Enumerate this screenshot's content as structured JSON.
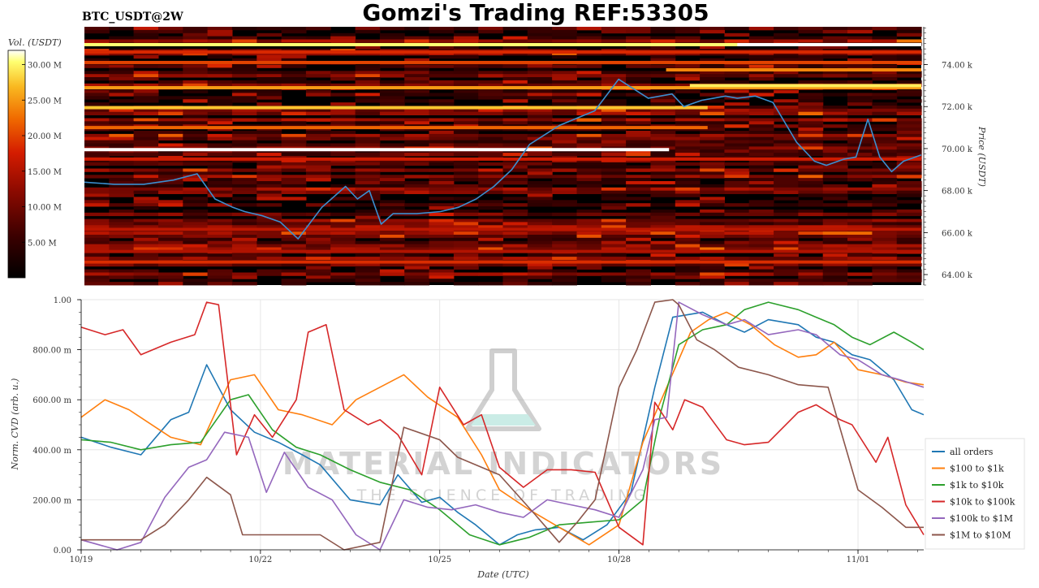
{
  "header": {
    "title": "Gomzi's Trading REF:53305",
    "symbol": "BTC_USDT@2W"
  },
  "watermark": {
    "brand": "MATERIAL INDICATORS",
    "tagline": "THE SCIENCE OF TRADING",
    "icon": "flask-icon"
  },
  "colors": {
    "price_line": "#3b8fd0",
    "heatmap_bg": "#000000"
  },
  "chart_data": [
    {
      "type": "heatmap",
      "title": "",
      "colorbar": {
        "label": "Vol. (USDT)",
        "ticks": [
          "5.00 M",
          "10.00 M",
          "15.00 M",
          "20.00 M",
          "25.00 M",
          "30.00 M"
        ],
        "tick_values": [
          5,
          10,
          15,
          20,
          25,
          30
        ],
        "range": [
          0,
          32
        ],
        "colors": [
          "#000000",
          "#3a0000",
          "#8c0a00",
          "#d41c00",
          "#f06a00",
          "#f9b820",
          "#ffff70",
          "#ffffff"
        ]
      },
      "ylabel": "Price (USDT)",
      "yticks": [
        "64.00 k",
        "66.00 k",
        "68.00 k",
        "70.00 k",
        "72.00 k",
        "74.00 k"
      ],
      "ytick_values": [
        64000,
        66000,
        68000,
        70000,
        72000,
        74000
      ],
      "ylim": [
        63500,
        75800
      ],
      "xlim": [
        0,
        14.1
      ],
      "price_series": {
        "x": [
          0,
          0.5,
          1.0,
          1.5,
          1.9,
          2.2,
          2.5,
          2.7,
          3.0,
          3.3,
          3.6,
          4.0,
          4.4,
          4.6,
          4.8,
          5.0,
          5.2,
          5.6,
          6.0,
          6.3,
          6.6,
          6.9,
          7.2,
          7.5,
          8.0,
          8.6,
          9.0,
          9.5,
          9.9,
          10.1,
          10.4,
          10.6,
          10.8,
          11.0,
          11.3,
          11.6,
          12.0,
          12.3,
          12.5,
          12.8,
          13.0,
          13.2,
          13.4,
          13.6,
          13.8,
          14.1
        ],
        "y": [
          68400,
          68300,
          68300,
          68500,
          68800,
          67600,
          67200,
          67000,
          66800,
          66500,
          65700,
          67200,
          68200,
          67600,
          68000,
          66400,
          66900,
          66900,
          67000,
          67200,
          67600,
          68200,
          69000,
          70200,
          71100,
          71800,
          73300,
          72400,
          72600,
          72000,
          72300,
          72400,
          72500,
          72400,
          72500,
          72200,
          70300,
          69400,
          69200,
          69500,
          69600,
          71400,
          69600,
          68900,
          69400,
          69700
        ]
      }
    },
    {
      "type": "line",
      "title": "",
      "xlabel": "Date (UTC)",
      "ylabel": "Norm. CVD (arb. u.)",
      "categories": [
        "10/19",
        "10/22",
        "10/25",
        "10/28",
        "11/01"
      ],
      "tick_x": [
        0,
        3,
        6,
        9,
        13
      ],
      "yticks": [
        "0.00",
        "200.00 m",
        "400.00 m",
        "600.00 m",
        "800.00 m",
        "1.00"
      ],
      "ytick_values": [
        0,
        200,
        400,
        600,
        800,
        1000
      ],
      "xlim": [
        0,
        14.1
      ],
      "ylim": [
        0,
        1000
      ],
      "legend": "bottom-right",
      "grid": true,
      "series": [
        {
          "name": "all orders",
          "color": "#1f77b4",
          "x": [
            0,
            0.5,
            1.0,
            1.5,
            1.8,
            2.1,
            2.5,
            2.9,
            3.3,
            3.7,
            4.0,
            4.5,
            5.0,
            5.3,
            5.7,
            6.0,
            6.3,
            6.6,
            7.0,
            7.3,
            7.6,
            8.0,
            8.4,
            8.8,
            9.2,
            9.6,
            9.9,
            10.4,
            10.8,
            11.1,
            11.5,
            12.0,
            12.3,
            12.6,
            12.9,
            13.2,
            13.6,
            13.9,
            14.1
          ],
          "y": [
            450,
            410,
            380,
            520,
            550,
            740,
            560,
            470,
            430,
            380,
            340,
            200,
            180,
            300,
            190,
            210,
            150,
            100,
            20,
            60,
            80,
            90,
            40,
            100,
            230,
            650,
            930,
            950,
            900,
            870,
            920,
            900,
            850,
            830,
            780,
            760,
            680,
            560,
            540
          ]
        },
        {
          "name": "$100 to $1k",
          "color": "#ff7f0e",
          "x": [
            0,
            0.4,
            0.8,
            1.5,
            2.0,
            2.5,
            2.9,
            3.3,
            3.7,
            4.2,
            4.6,
            5.0,
            5.4,
            5.8,
            6.3,
            6.7,
            7.0,
            7.5,
            8.0,
            8.5,
            9.0,
            9.4,
            9.8,
            10.2,
            10.5,
            10.8,
            11.2,
            11.6,
            12.0,
            12.3,
            12.6,
            13.0,
            13.4,
            13.8,
            14.1
          ],
          "y": [
            530,
            600,
            560,
            450,
            420,
            680,
            700,
            560,
            540,
            500,
            600,
            650,
            700,
            610,
            530,
            380,
            240,
            160,
            90,
            20,
            100,
            430,
            650,
            870,
            920,
            950,
            900,
            820,
            770,
            780,
            830,
            720,
            700,
            670,
            660
          ]
        },
        {
          "name": "$1k to $10k",
          "color": "#2ca02c",
          "x": [
            0,
            0.5,
            1.0,
            1.5,
            2.0,
            2.5,
            2.8,
            3.2,
            3.6,
            4.0,
            4.5,
            5.0,
            5.5,
            6.0,
            6.5,
            7.0,
            7.5,
            8.0,
            8.5,
            9.0,
            9.4,
            9.7,
            10.0,
            10.4,
            10.8,
            11.1,
            11.5,
            12.0,
            12.3,
            12.6,
            12.9,
            13.2,
            13.6,
            13.9,
            14.1
          ],
          "y": [
            440,
            430,
            400,
            420,
            430,
            600,
            620,
            480,
            410,
            380,
            320,
            270,
            240,
            160,
            60,
            20,
            50,
            100,
            110,
            120,
            200,
            550,
            820,
            880,
            900,
            960,
            990,
            960,
            930,
            900,
            850,
            820,
            870,
            830,
            800
          ]
        },
        {
          "name": "$10k to $100k",
          "color": "#d62728",
          "x": [
            0,
            0.4,
            0.7,
            1.0,
            1.5,
            1.9,
            2.1,
            2.3,
            2.6,
            2.9,
            3.2,
            3.6,
            3.8,
            4.1,
            4.4,
            4.8,
            5.0,
            5.3,
            5.7,
            6.0,
            6.4,
            6.7,
            7.0,
            7.4,
            7.8,
            8.2,
            8.6,
            9.0,
            9.4,
            9.6,
            9.9,
            10.1,
            10.4,
            10.8,
            11.1,
            11.5,
            12.0,
            12.3,
            12.7,
            12.9,
            13.3,
            13.5,
            13.8,
            14.1
          ],
          "y": [
            890,
            860,
            880,
            780,
            830,
            860,
            990,
            980,
            380,
            540,
            450,
            600,
            870,
            900,
            560,
            500,
            520,
            460,
            300,
            650,
            500,
            540,
            330,
            250,
            320,
            320,
            310,
            90,
            20,
            590,
            480,
            600,
            570,
            440,
            420,
            430,
            550,
            580,
            520,
            500,
            350,
            450,
            180,
            60
          ]
        },
        {
          "name": "$100k to $1M",
          "color": "#9467bd",
          "x": [
            0,
            0.6,
            1.0,
            1.4,
            1.8,
            2.1,
            2.4,
            2.8,
            3.1,
            3.4,
            3.8,
            4.2,
            4.6,
            5.0,
            5.4,
            5.8,
            6.2,
            6.6,
            7.0,
            7.4,
            7.8,
            8.2,
            8.6,
            9.0,
            9.4,
            9.6,
            9.8,
            10.0,
            10.4,
            10.8,
            11.1,
            11.5,
            12.0,
            12.3,
            12.7,
            13.0,
            13.4,
            13.7,
            14.1
          ],
          "y": [
            40,
            0,
            30,
            210,
            330,
            360,
            470,
            450,
            230,
            390,
            250,
            200,
            60,
            0,
            200,
            170,
            160,
            180,
            150,
            130,
            200,
            180,
            160,
            130,
            320,
            520,
            530,
            990,
            940,
            900,
            920,
            860,
            880,
            860,
            780,
            760,
            700,
            680,
            650
          ]
        },
        {
          "name": "$1M to $10M",
          "color": "#8c564b",
          "x": [
            0,
            1.0,
            1.4,
            1.8,
            2.1,
            2.5,
            2.7,
            3.0,
            4.0,
            4.4,
            5.0,
            5.4,
            6.0,
            6.3,
            7.0,
            7.6,
            8.0,
            8.3,
            8.6,
            9.0,
            9.3,
            9.6,
            9.9,
            10.0,
            10.3,
            10.6,
            11.0,
            11.5,
            12.0,
            12.5,
            13.0,
            13.4,
            13.8,
            14.1
          ],
          "y": [
            40,
            40,
            100,
            200,
            290,
            220,
            60,
            60,
            60,
            0,
            30,
            490,
            440,
            370,
            300,
            140,
            30,
            110,
            200,
            650,
            800,
            990,
            1000,
            980,
            840,
            800,
            730,
            700,
            660,
            650,
            240,
            170,
            90,
            90
          ]
        }
      ]
    }
  ]
}
